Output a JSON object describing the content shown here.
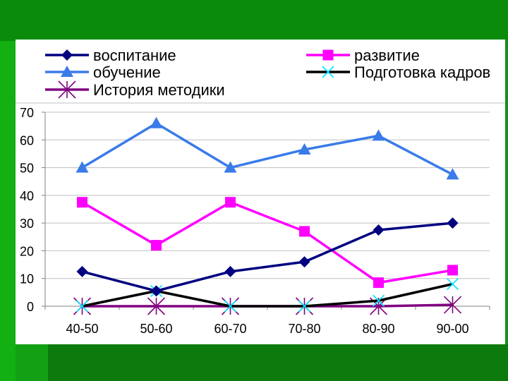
{
  "chart_data": {
    "type": "line",
    "title": "",
    "xlabel": "",
    "ylabel": "",
    "categories": [
      "40-50",
      "50-60",
      "60-70",
      "70-80",
      "80-90",
      "90-00"
    ],
    "ylim": [
      0,
      70
    ],
    "yticks": [
      "0",
      "10",
      "20",
      "30",
      "40",
      "50",
      "60",
      "70"
    ],
    "grid": true,
    "legend_position": "top",
    "series": [
      {
        "name": "воспитание",
        "values": [
          12.5,
          5.5,
          12.5,
          16,
          27.5,
          30
        ],
        "color": "#000080",
        "marker": "diamond"
      },
      {
        "name": "развитие",
        "values": [
          37.5,
          22,
          37.5,
          27,
          8.5,
          13
        ],
        "color": "#ff00ff",
        "marker": "square"
      },
      {
        "name": "обучение",
        "values": [
          50,
          66,
          50,
          56.5,
          61.5,
          47.5
        ],
        "color": "#3a7bea",
        "marker": "triangle"
      },
      {
        "name": "Подготовка кадров",
        "values": [
          0,
          5.5,
          0,
          0,
          2,
          8
        ],
        "color": "#000000",
        "marker": "x"
      },
      {
        "name": "История методики",
        "values": [
          0,
          0,
          0,
          0,
          0,
          0.5
        ],
        "color": "#800080",
        "marker": "star"
      }
    ]
  }
}
